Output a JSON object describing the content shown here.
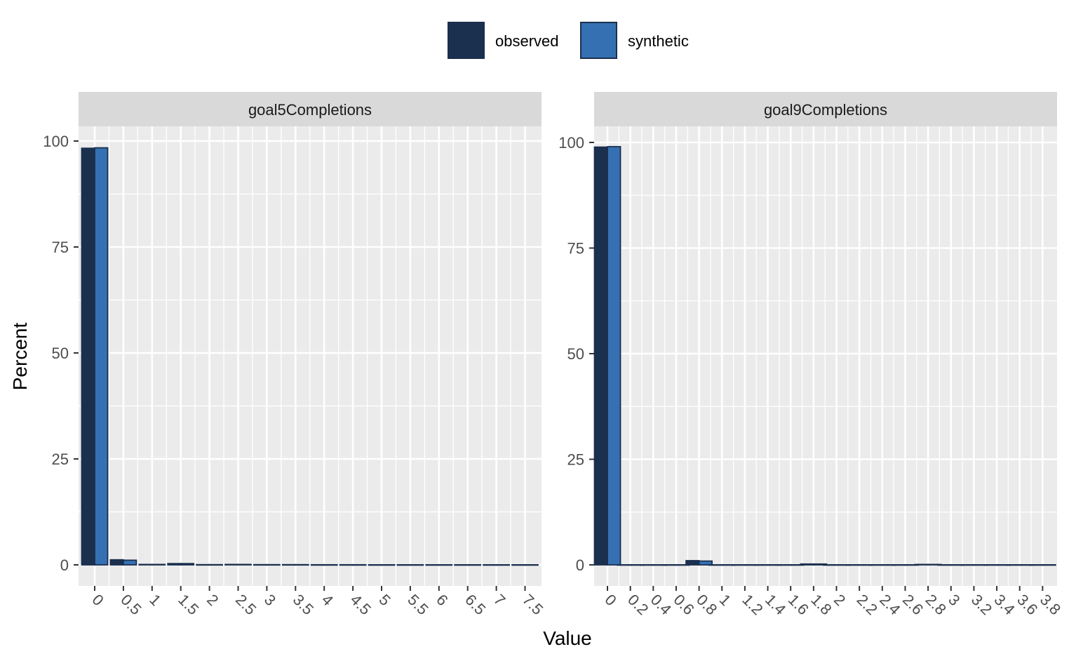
{
  "chart_data": {
    "type": "bar",
    "xlabel": "Value",
    "ylabel": "Percent",
    "legend": {
      "position": "top",
      "entries": [
        {
          "name": "observed",
          "color": "#1b2f4e"
        },
        {
          "name": "synthetic",
          "color": "#3571b2"
        }
      ]
    },
    "grid": true,
    "panels": [
      {
        "title": "goal5Completions",
        "ylim": [
          0,
          100
        ],
        "yticks": [
          "0",
          "25",
          "50",
          "75",
          "100"
        ],
        "xticks": [
          "0",
          "0.5",
          "1",
          "1.5",
          "2",
          "2.5",
          "3",
          "3.5",
          "4",
          "4.5",
          "5",
          "5.5",
          "6",
          "6.5",
          "7",
          "7.5"
        ],
        "series": [
          {
            "name": "observed",
            "values": [
              98.3,
              1.2,
              0.1,
              0.3,
              0.05,
              0.1,
              0.05,
              0.05,
              0.03,
              0.03,
              0.02,
              0.02,
              0.02,
              0.02,
              0.02,
              0.02
            ]
          },
          {
            "name": "synthetic",
            "values": [
              98.4,
              1.1,
              0.1,
              0.3,
              0.05,
              0.1,
              0.05,
              0.05,
              0.03,
              0.03,
              0.02,
              0.02,
              0.02,
              0.02,
              0.02,
              0.02
            ]
          }
        ]
      },
      {
        "title": "goal9Completions",
        "ylim": [
          0,
          100
        ],
        "yticks": [
          "0",
          "25",
          "50",
          "75",
          "100"
        ],
        "xticks": [
          "0",
          "0.2",
          "0.4",
          "0.6",
          "0.8",
          "1",
          "1.2",
          "1.4",
          "1.6",
          "1.8",
          "2",
          "2.2",
          "2.4",
          "2.6",
          "2.8",
          "3",
          "3.2",
          "3.4",
          "3.6",
          "3.8"
        ],
        "series": [
          {
            "name": "observed",
            "values": [
              98.9,
              0.02,
              0.02,
              0.02,
              1.0,
              0.02,
              0.02,
              0.02,
              0.02,
              0.2,
              0.02,
              0.02,
              0.02,
              0.02,
              0.1,
              0.02,
              0.02,
              0.02,
              0.02,
              0.02
            ]
          },
          {
            "name": "synthetic",
            "values": [
              99.0,
              0.02,
              0.02,
              0.02,
              0.9,
              0.02,
              0.02,
              0.02,
              0.02,
              0.2,
              0.02,
              0.02,
              0.02,
              0.02,
              0.1,
              0.02,
              0.02,
              0.02,
              0.02,
              0.02
            ]
          }
        ]
      }
    ]
  }
}
